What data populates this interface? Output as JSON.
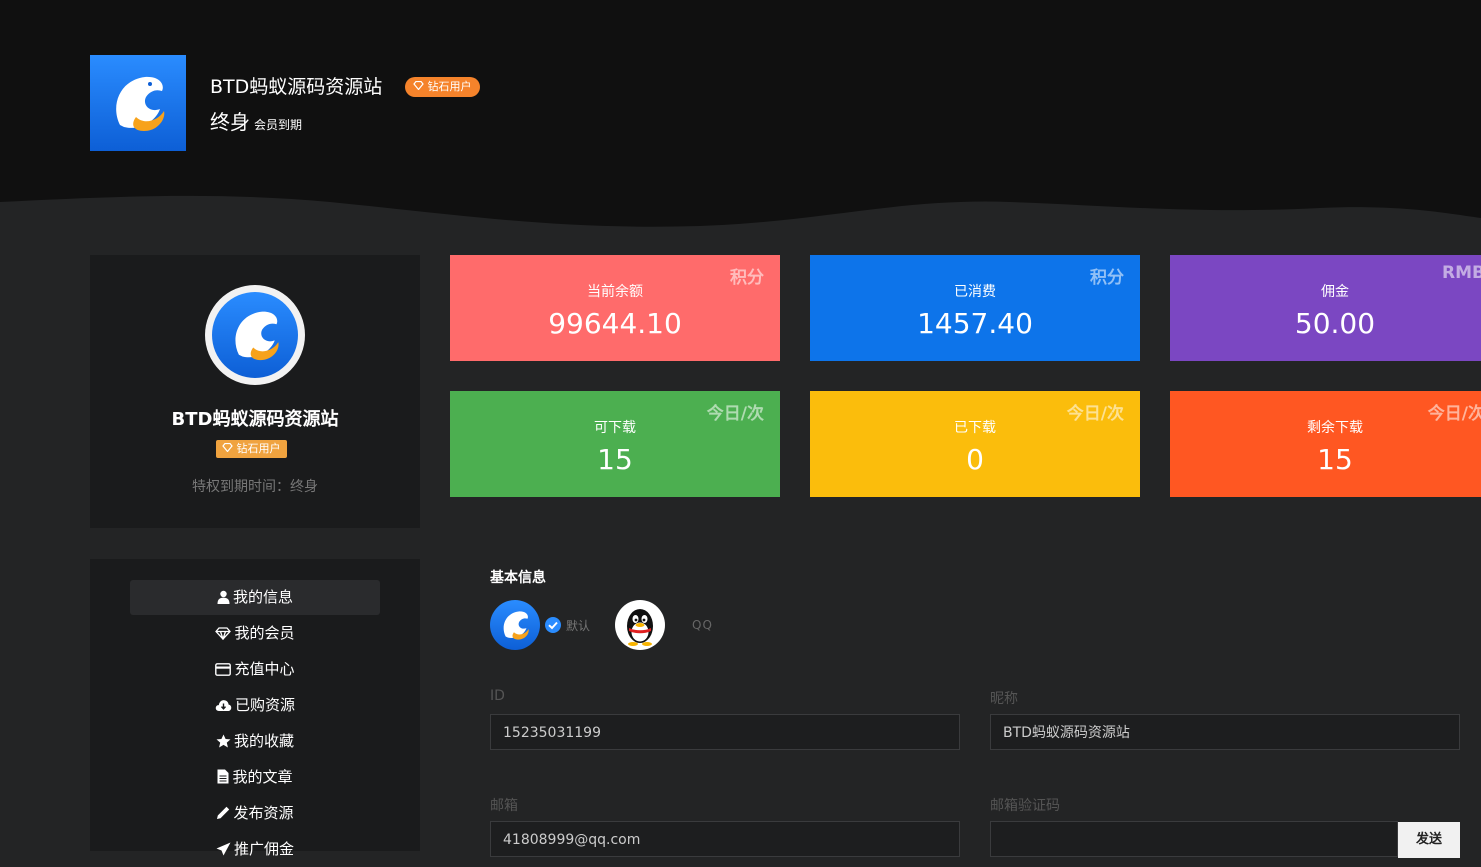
{
  "header": {
    "site_name": "BTD蚂蚁源码资源站",
    "badge": "钻石用户",
    "membership": "终身",
    "membership_note": "会员到期"
  },
  "profile": {
    "name": "BTD蚂蚁源码资源站",
    "badge": "钻石用户",
    "expiry": "特权到期时间：终身"
  },
  "stats": [
    {
      "label": "当前余额",
      "value": "99644.10",
      "unit": "积分",
      "color": "#ff6b6b"
    },
    {
      "label": "已消费",
      "value": "1457.40",
      "unit": "积分",
      "color": "#0d74ea"
    },
    {
      "label": "佣金",
      "value": "50.00",
      "unit": "RMB",
      "color": "#7b47c2"
    },
    {
      "label": "可下载",
      "value": "15",
      "unit": "今日/次",
      "color": "#4caf50"
    },
    {
      "label": "已下载",
      "value": "0",
      "unit": "今日/次",
      "color": "#fbbd0c"
    },
    {
      "label": "剩余下载",
      "value": "15",
      "unit": "今日/次",
      "color": "#ff5722"
    }
  ],
  "menu": [
    {
      "label": "我的信息",
      "icon": "user-icon"
    },
    {
      "label": "我的会员",
      "icon": "diamond-icon"
    },
    {
      "label": "充值中心",
      "icon": "credit-card-icon"
    },
    {
      "label": "已购资源",
      "icon": "cloud-download-icon"
    },
    {
      "label": "我的收藏",
      "icon": "star-icon"
    },
    {
      "label": "我的文章",
      "icon": "document-icon"
    },
    {
      "label": "发布资源",
      "icon": "pencil-icon"
    },
    {
      "label": "推广佣金",
      "icon": "send-icon"
    }
  ],
  "basic_info": {
    "title": "基本信息",
    "default_label": "默认",
    "qq_label": "QQ",
    "id_label": "ID",
    "id_value": "15235031199",
    "nickname_label": "昵称",
    "nickname_value": "BTD蚂蚁源码资源站",
    "email_label": "邮箱",
    "email_value": "41808999@qq.com",
    "email_code_label": "邮箱验证码",
    "email_code_value": "",
    "send_button": "发送"
  }
}
